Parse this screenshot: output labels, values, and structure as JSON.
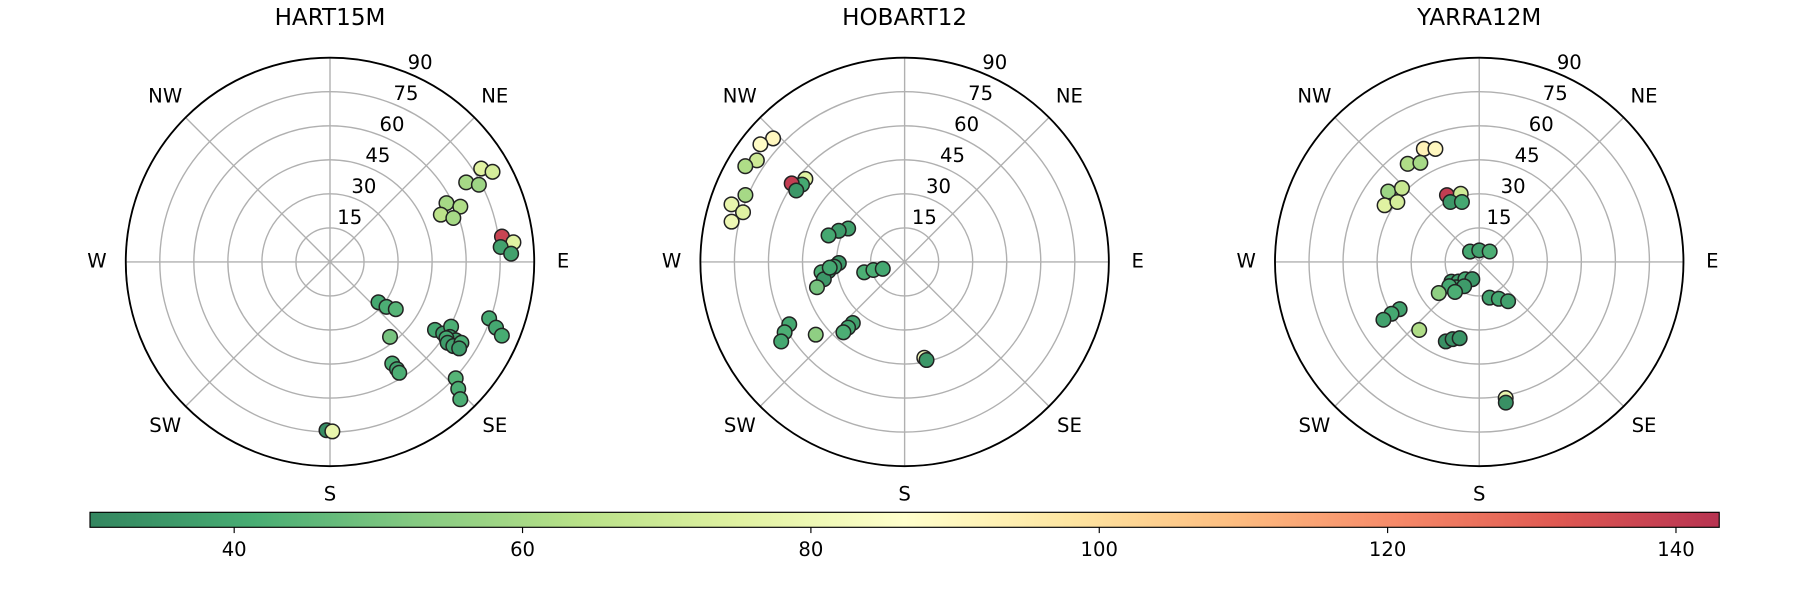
{
  "chart_data": [
    {
      "type": "polar_scatter",
      "title": "HART15M",
      "theta": [
        58.3,
        61.0,
        59.7,
        62.6,
        63.2,
        67.0,
        66.9,
        70.4,
        81.6,
        83.9,
        85.0,
        87.4,
        109.5,
        111.6,
        113.2,
        129.8,
        128.5,
        125.7,
        141.3,
        148.5,
        148.0,
        148.0,
        122.9,
        122.3,
        118.1,
        122.0,
        121.9,
        123.2,
        124.5,
        124.3,
        121.6,
        123.8,
        132.8,
        134.7,
        136.5,
        181.2,
        179.2
      ],
      "r": [
        78.3,
        81.9,
        69.5,
        73.9,
        57.5,
        62.4,
        53.1,
        57.7,
        76.6,
        81.3,
        75.5,
        79.9,
        74.4,
        78.7,
        82.4,
        27.8,
        31.8,
        35.7,
        42.3,
        52.5,
        55.7,
        57.6,
        55.1,
        59.0,
        60.5,
        62.3,
        65.3,
        61.3,
        62.9,
        65.8,
        68.0,
        68.5,
        75.5,
        79.5,
        83.4,
        74.2,
        74.7
      ],
      "c": [
        75,
        72,
        60,
        58,
        60,
        62,
        65,
        60,
        138,
        75,
        38,
        38,
        40,
        40,
        41,
        40,
        42,
        44,
        50,
        42,
        38,
        42,
        40,
        36,
        42,
        35,
        38,
        40,
        36,
        38,
        42,
        36,
        44,
        42,
        42,
        32,
        78
      ],
      "rlim": [
        0,
        90
      ],
      "rticks": [
        15,
        30,
        45,
        60,
        75,
        90
      ],
      "thetaticks": [
        0,
        45,
        90,
        135,
        180,
        225,
        270,
        315
      ],
      "thetaticklabels": [
        null,
        "NE",
        "E",
        "SE",
        "S",
        "SW",
        "W",
        "NW"
      ]
    },
    {
      "type": "polar_scatter",
      "title": "HOBART12",
      "theta": [
        313.2,
        309.2,
        304.5,
        301.0,
        292.8,
        288.4,
        287.1,
        283.1,
        309.9,
        307.0,
        304.8,
        303.4,
        300.6,
        295.3,
        289.2,
        269.0,
        266.2,
        263.1,
        262.9,
        257.9,
        253.9,
        265.6,
        255.6,
        255.5,
        252.5,
        241.6,
        239.6,
        237.2,
        230.7,
        220.3,
        220.7,
        221.0,
        168.4,
        167.4
      ],
      "r": [
        79.5,
        82.0,
        79.0,
        81.9,
        76.1,
        80.4,
        74.5,
        78.3,
        57.0,
        56.6,
        60.6,
        57.2,
        28.9,
        32.1,
        35.5,
        29.0,
        31.1,
        33.8,
        36.9,
        36.4,
        40.2,
        33.1,
        18.4,
        14.2,
        10.1,
        57.8,
        61.3,
        64.7,
        50.6,
        35.3,
        38.2,
        41.1,
        43.1,
        44.3
      ],
      "c": [
        90,
        88,
        70,
        62,
        60,
        78,
        75,
        80,
        75,
        40,
        140,
        35,
        38,
        36,
        40,
        35,
        38,
        36,
        42,
        35,
        50,
        40,
        42,
        42,
        40,
        40,
        42,
        40,
        55,
        38,
        40,
        42,
        82,
        35
      ],
      "rlim": [
        0,
        90
      ],
      "rticks": [
        15,
        30,
        45,
        60,
        75,
        90
      ],
      "thetaticks": [
        0,
        45,
        90,
        135,
        180,
        225,
        270,
        315
      ],
      "thetaticklabels": [
        null,
        "NE",
        "E",
        "SE",
        "S",
        "SW",
        "W",
        "NW"
      ]
    },
    {
      "type": "polar_scatter",
      "title": "YARRA12M",
      "theta": [
        333.9,
        338.8,
        323.9,
        329.3,
        307.7,
        313.7,
        300.9,
        306.2,
        334.2,
        344.8,
        334.3,
        343.9,
        318.4,
        0,
        45,
        234.7,
        226.6,
        218.7,
        201.8,
        222.3,
        211.8,
        231.1,
        232.4,
        218.9,
        163.8,
        152.0,
        143.7,
        239.3,
        239.4,
        238.9,
        221.4,
        202.8,
        199.0,
        194.4,
        169.0,
        169.3
      ],
      "r": [
        55.5,
        53.4,
        53.5,
        50.8,
        50.7,
        47.1,
        48.6,
        44.7,
        32.7,
        31.1,
        29.3,
        27.5,
        6.1,
        5.1,
        6.5,
        15.0,
        12.6,
        9.8,
        8.2,
        15.1,
        12.6,
        17.0,
        22.5,
        17.0,
        16.4,
        18.4,
        21.5,
        40.8,
        44.9,
        49.3,
        40.0,
        38.0,
        36.0,
        34.7,
        61.1,
        63.1
      ],
      "c": [
        92,
        90,
        62,
        60,
        58,
        68,
        75,
        72,
        140,
        70,
        35,
        40,
        40,
        38,
        42,
        36,
        38,
        40,
        35,
        38,
        36,
        40,
        55,
        42,
        38,
        40,
        38,
        38,
        40,
        38,
        62,
        33,
        33,
        34,
        78,
        33
      ],
      "rlim": [
        0,
        90
      ],
      "rticks": [
        15,
        30,
        45,
        60,
        75,
        90
      ],
      "thetaticks": [
        0,
        45,
        90,
        135,
        180,
        225,
        270,
        315
      ],
      "thetaticklabels": [
        null,
        "NE",
        "E",
        "SE",
        "S",
        "SW",
        "W",
        "NW"
      ]
    },
    {
      "type": "colorbar",
      "colormap": "RdYlGn_r",
      "xlim": [
        30,
        143
      ],
      "xticks": [
        40,
        60,
        80,
        100,
        120,
        140
      ]
    }
  ]
}
